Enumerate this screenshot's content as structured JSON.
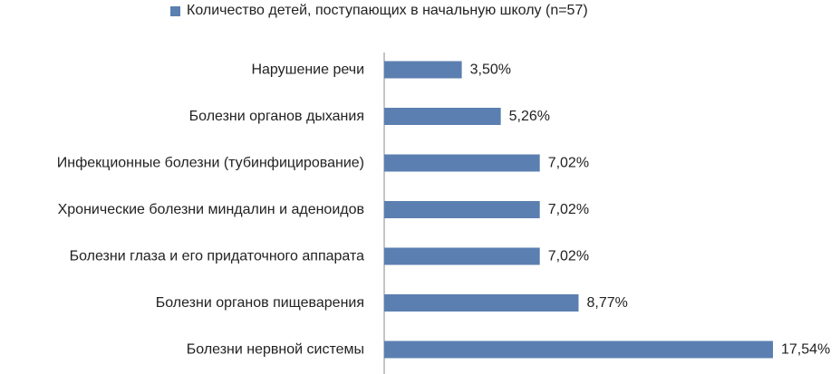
{
  "chart_data": {
    "type": "bar",
    "orientation": "horizontal",
    "categories": [
      "Нарушение речи",
      "Болезни органов дыхания",
      "Инфекционные болезни (тубинфицирование)",
      "Хронические болезни миндалин и аденоидов",
      "Болезни глаза и его придаточного аппарата",
      "Болезни органов пищеварения",
      "Болезни нервной системы"
    ],
    "series": [
      {
        "name": "Количество детей, поступающих в начальную школу (n=57)",
        "values": [
          3.5,
          5.26,
          7.02,
          7.02,
          7.02,
          8.77,
          17.54
        ],
        "labels": [
          "3,50%",
          "5,26%",
          "7,02%",
          "7,02%",
          "7,02%",
          "8,77%",
          "17,54%"
        ]
      }
    ],
    "xlim": [
      0,
      17.54
    ],
    "legend_position": "top",
    "grid": false,
    "color": "#5b7fb0"
  }
}
